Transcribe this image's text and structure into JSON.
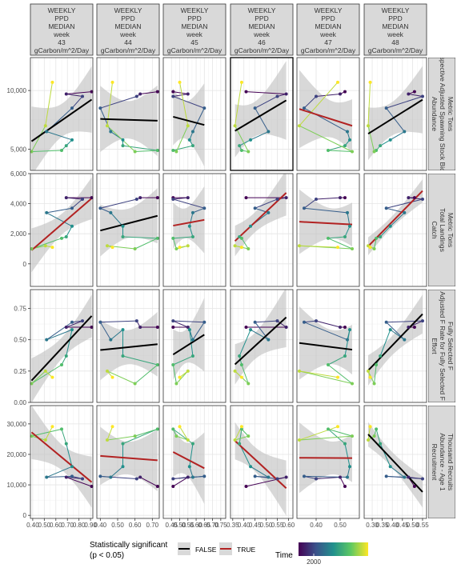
{
  "chart_data": {
    "type": "facet-grid",
    "col_strips": [
      [
        "WEEKLY",
        "PPD",
        "MEDIAN",
        "week",
        "43",
        "gCarbon/m^2/Day"
      ],
      [
        "WEEKLY",
        "PPD",
        "MEDIAN",
        "week",
        "44",
        "gCarbon/m^2/Day"
      ],
      [
        "WEEKLY",
        "PPD",
        "MEDIAN",
        "week",
        "45",
        "gCarbon/m^2/Day"
      ],
      [
        "WEEKLY",
        "PPD",
        "MEDIAN",
        "week",
        "46",
        "gCarbon/m^2/Day"
      ],
      [
        "WEEKLY",
        "PPD",
        "MEDIAN",
        "week",
        "47",
        "gCarbon/m^2/Day"
      ],
      [
        "WEEKLY",
        "PPD",
        "MEDIAN",
        "week",
        "48",
        "gCarbon/m^2/Day"
      ]
    ],
    "row_strips": [
      [
        "Abundance",
        "Retrospective Adjusted Spawning Stock Biomass",
        "Metric Tons"
      ],
      [
        "Catch",
        "Total Landings",
        "Metric Tons"
      ],
      [
        "Effort",
        "Adjusted F Rate for Fully Selected F",
        "Fully Selected F"
      ],
      [
        "Recruitment",
        "Abundance - Age 1",
        "Thousand Recruits"
      ]
    ],
    "y_axes": [
      {
        "ylim": [
          3200,
          12800
        ],
        "ticks": [
          5000,
          10000
        ],
        "tick_labels": [
          "5,000",
          "10,000"
        ]
      },
      {
        "ylim": [
          -1500,
          6000
        ],
        "ticks": [
          0,
          2000,
          4000,
          6000
        ],
        "tick_labels": [
          "0",
          "2,000",
          "4,000",
          "6,000"
        ]
      },
      {
        "ylim": [
          0,
          0.9
        ],
        "ticks": [
          0,
          0.25,
          0.5,
          0.75
        ],
        "tick_labels": [
          "0.00",
          "0.25",
          "0.50",
          "0.75"
        ]
      },
      {
        "ylim": [
          -1000,
          36000
        ],
        "ticks": [
          0,
          10000,
          20000,
          30000
        ],
        "tick_labels": [
          "0",
          "10,000",
          "20,000",
          "30,000"
        ]
      }
    ],
    "x_axes": [
      {
        "xlim": [
          0.38,
          0.92
        ],
        "ticks": [
          0.4,
          0.5,
          0.6,
          0.7,
          0.8,
          0.9
        ],
        "tick_labels": [
          "0.40",
          "0.50",
          "0.60",
          "0.70",
          "0.80",
          "0.90"
        ]
      },
      {
        "xlim": [
          0.38,
          0.74
        ],
        "ticks": [
          0.4,
          0.5,
          0.6,
          0.7
        ],
        "tick_labels": [
          "0.40",
          "0.50",
          "0.60",
          "0.70"
        ]
      },
      {
        "xlim": [
          0.4,
          0.78
        ],
        "ticks": [
          0.45,
          0.5,
          0.55,
          0.6,
          0.65,
          0.7,
          0.75
        ],
        "tick_labels": [
          "0.45",
          "0.50",
          "0.55",
          "0.60",
          "0.65",
          "0.70",
          "0.75"
        ]
      },
      {
        "xlim": [
          0.34,
          0.62
        ],
        "ticks": [
          0.35,
          0.4,
          0.45,
          0.5,
          0.55,
          0.6
        ],
        "tick_labels": [
          "0.35",
          "0.40",
          "0.45",
          "0.50",
          "0.55",
          "0.60"
        ]
      },
      {
        "xlim": [
          0.32,
          0.58
        ],
        "ticks": [
          0.4,
          0.5
        ],
        "tick_labels": [
          "0.40",
          "0.50"
        ]
      },
      {
        "xlim": [
          0.26,
          0.57
        ],
        "ticks": [
          0.3,
          0.35,
          0.4,
          0.45,
          0.5,
          0.55
        ],
        "tick_labels": [
          "0.30",
          "0.35",
          "0.40",
          "0.45",
          "0.50",
          "0.55"
        ]
      }
    ],
    "column_x": [
      [
        0.91,
        0.69,
        0.83,
        0.74,
        0.52,
        0.74,
        0.69,
        0.65,
        0.39,
        0.51,
        0.57
      ],
      [
        0.73,
        0.63,
        0.61,
        0.4,
        0.46,
        0.53,
        0.53,
        0.73,
        0.6,
        0.44,
        0.47
      ],
      [
        0.46,
        0.55,
        0.46,
        0.65,
        0.58,
        0.56,
        0.58,
        0.46,
        0.48,
        0.55,
        0.5
      ],
      [
        0.41,
        0.59,
        0.55,
        0.45,
        0.51,
        0.43,
        0.38,
        0.39,
        0.42,
        0.36,
        0.39
      ],
      [
        0.52,
        0.5,
        0.4,
        0.35,
        0.53,
        0.54,
        0.52,
        0.45,
        0.55,
        0.33,
        0.49
      ],
      [
        0.51,
        0.48,
        0.55,
        0.37,
        0.46,
        0.39,
        0.34,
        0.32,
        0.31,
        0.28,
        0.29
      ]
    ],
    "row_y": [
      [
        9900,
        9700,
        9500,
        8500,
        6500,
        5800,
        5300,
        4900,
        4800,
        7000,
        10700
      ],
      [
        4400,
        4400,
        4300,
        3700,
        3400,
        2500,
        1800,
        1700,
        1000,
        1200,
        1100
      ],
      [
        0.6,
        0.6,
        0.65,
        0.64,
        0.5,
        0.58,
        0.37,
        0.3,
        0.15,
        0.25,
        0.2
      ],
      [
        9500,
        12500,
        12000,
        12800,
        12500,
        16000,
        23500,
        28300,
        26000,
        24700,
        29100
      ]
    ],
    "years": [
      2000,
      2001,
      2002,
      2003,
      2004,
      2005,
      2006,
      2007,
      2008,
      2009,
      2010
    ],
    "significant": [
      [
        false,
        false,
        false,
        false,
        true,
        false
      ],
      [
        true,
        false,
        true,
        true,
        true,
        true
      ],
      [
        false,
        false,
        false,
        false,
        false,
        false
      ],
      [
        true,
        true,
        true,
        true,
        true,
        false
      ]
    ],
    "highlighted_panel": [
      0,
      3
    ],
    "legend": {
      "sig_title": [
        "Statistically significant",
        "(p < 0.05)"
      ],
      "sig_entries": [
        {
          "label": "FALSE",
          "color": "#000000"
        },
        {
          "label": "TRUE",
          "color": "#b22222"
        }
      ],
      "time_title": "Time",
      "time_tick": "2000",
      "colors": [
        "#440154",
        "#3b528b",
        "#21908c",
        "#5dc863",
        "#fde725"
      ]
    }
  }
}
